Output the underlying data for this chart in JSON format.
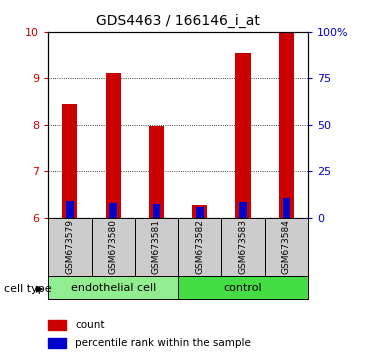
{
  "title": "GDS4463 / 166146_i_at",
  "samples": [
    "GSM673579",
    "GSM673580",
    "GSM673581",
    "GSM673582",
    "GSM673583",
    "GSM673584"
  ],
  "red_values": [
    8.45,
    9.12,
    7.98,
    6.28,
    9.55,
    10.0
  ],
  "blue_values": [
    6.35,
    6.32,
    6.3,
    6.22,
    6.33,
    6.42
  ],
  "baseline": 6.0,
  "ylim": [
    6.0,
    10.0
  ],
  "yticks_left": [
    6,
    7,
    8,
    9,
    10
  ],
  "yticks_right": [
    0,
    25,
    50,
    75,
    100
  ],
  "ytick_labels_right": [
    "0",
    "25",
    "50",
    "75",
    "100%"
  ],
  "bar_width": 0.35,
  "red_color": "#cc0000",
  "blue_color": "#0000cc",
  "group_labels": [
    "endothelial cell",
    "control"
  ],
  "group_ranges": [
    [
      0,
      3
    ],
    [
      3,
      6
    ]
  ],
  "group_color_left": "#90ee90",
  "group_color_right": "#44dd44",
  "cell_type_label": "cell type",
  "legend_red": "count",
  "legend_blue": "percentile rank within the sample",
  "axis_label_color_left": "#cc0000",
  "axis_label_color_right": "#0000cc",
  "sample_box_color": "#cccccc"
}
